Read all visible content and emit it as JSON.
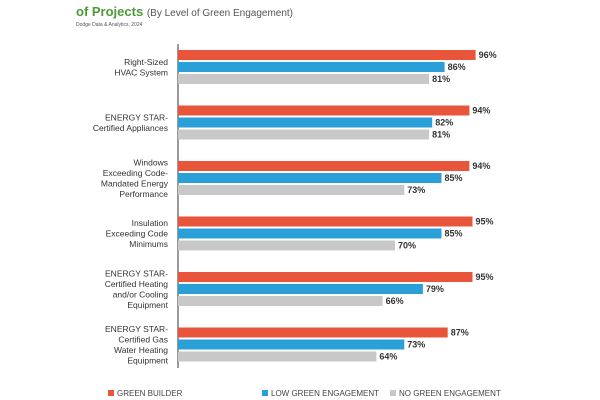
{
  "header": {
    "title": "of Projects",
    "subtitle": "(By Level of Green Engagement)",
    "source": "Dodge Data & Analytics, 2024"
  },
  "chart_data": {
    "type": "bar",
    "orientation": "horizontal",
    "categories": [
      [
        "Right-Sized",
        "HVAC System"
      ],
      [
        "ENERGY STAR-",
        "Certified Appliances"
      ],
      [
        "Windows",
        "Exceeding Code-",
        "Mandated Energy",
        "Performance"
      ],
      [
        "Insulation",
        "Exceeding Code",
        "Minimums"
      ],
      [
        "ENERGY STAR-",
        "Certified Heating",
        "and/or Cooling",
        "Equipment"
      ],
      [
        "ENERGY STAR-",
        "Certified Gas",
        "Water Heating",
        "Equipment"
      ]
    ],
    "series": [
      {
        "name": "GREEN BUILDER",
        "color": "#e8553a",
        "values": [
          96,
          94,
          94,
          95,
          95,
          87
        ]
      },
      {
        "name": "LOW GREEN ENGAGEMENT",
        "color": "#2a9fd8",
        "values": [
          86,
          82,
          85,
          85,
          79,
          73
        ]
      },
      {
        "name": "NO GREEN ENGAGEMENT",
        "color": "#c8c8c8",
        "values": [
          81,
          81,
          73,
          70,
          66,
          64
        ]
      }
    ],
    "value_suffix": "%",
    "xlim": [
      0,
      100
    ],
    "legend_position": "bottom",
    "grid": false
  }
}
